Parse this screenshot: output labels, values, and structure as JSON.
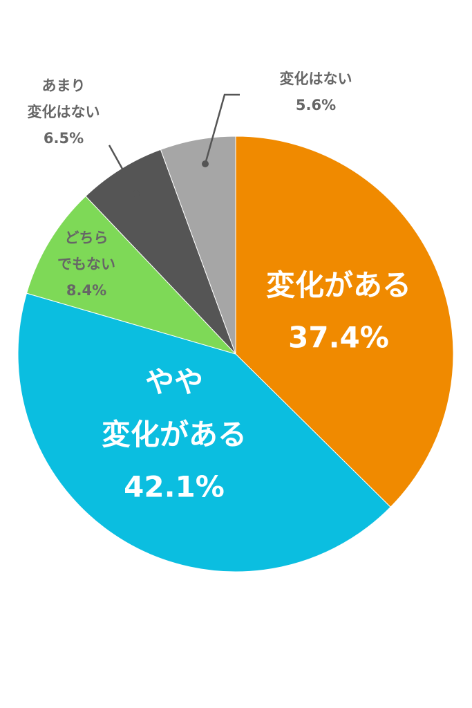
{
  "chart_data": {
    "type": "pie",
    "categories": [
      "変化がある",
      "やや\n変化がある",
      "どちら\nでもない",
      "あまり\n変化はない",
      "変化はない"
    ],
    "values": [
      37.4,
      42.1,
      8.4,
      6.5,
      5.6
    ],
    "value_labels": [
      "37.4%",
      "42.1%",
      "8.4%",
      "6.5%",
      "5.6%"
    ],
    "colors": [
      "#f08a00",
      "#0bbee0",
      "#7ed957",
      "#555555",
      "#a6a6a6"
    ]
  }
}
